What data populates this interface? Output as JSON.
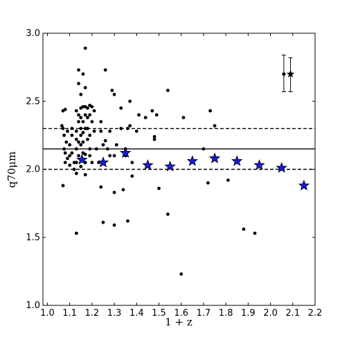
{
  "chart_data": {
    "type": "scatter",
    "xlabel": "1 + z",
    "ylabel": "q70μm",
    "xlim": [
      0.98,
      2.2
    ],
    "ylim": [
      1.0,
      3.0
    ],
    "x_ticks": [
      1.0,
      1.1,
      1.2,
      1.3,
      1.4,
      1.5,
      1.6,
      1.7,
      1.8,
      1.9,
      2.0,
      2.1,
      2.2
    ],
    "x_tick_labels": [
      "1.0",
      "1.1",
      "1.2",
      "1.3",
      "1.4",
      "1.5",
      "1.6",
      "1.7",
      "1.8",
      "1.9",
      "2.0",
      "2.1",
      "2.2"
    ],
    "y_ticks": [
      1.0,
      1.5,
      2.0,
      2.5,
      3.0
    ],
    "y_tick_labels": [
      "1.0",
      "1.5",
      "2.0",
      "2.5",
      "3.0"
    ],
    "grid": false,
    "hlines": [
      {
        "y": 2.15,
        "style": "solid"
      },
      {
        "y": 2.3,
        "style": "dashed"
      },
      {
        "y": 2.0,
        "style": "dashed"
      }
    ],
    "series": [
      {
        "marker": "dot",
        "color": "#000000",
        "points": [
          [
            1.065,
            2.32
          ],
          [
            1.07,
            2.43
          ],
          [
            1.08,
            2.44
          ],
          [
            1.07,
            2.3
          ],
          [
            1.075,
            2.25
          ],
          [
            1.085,
            2.2
          ],
          [
            1.075,
            2.15
          ],
          [
            1.08,
            2.12
          ],
          [
            1.08,
            2.05
          ],
          [
            1.09,
            2.08
          ],
          [
            1.07,
            1.88
          ],
          [
            1.09,
            2.28
          ],
          [
            1.1,
            2.18
          ],
          [
            1.1,
            2.1
          ],
          [
            1.1,
            2.03
          ],
          [
            1.11,
            2.3
          ],
          [
            1.11,
            2.25
          ],
          [
            1.11,
            2.12
          ],
          [
            1.12,
            2.05
          ],
          [
            1.12,
            2.0
          ],
          [
            1.13,
            2.43
          ],
          [
            1.13,
            2.28
          ],
          [
            1.13,
            2.22
          ],
          [
            1.13,
            2.15
          ],
          [
            1.13,
            2.05
          ],
          [
            1.13,
            1.97
          ],
          [
            1.13,
            1.53
          ],
          [
            1.14,
            2.73
          ],
          [
            1.14,
            2.63
          ],
          [
            1.14,
            2.4
          ],
          [
            1.14,
            2.35
          ],
          [
            1.14,
            2.2
          ],
          [
            1.14,
            2.1
          ],
          [
            1.15,
            2.55
          ],
          [
            1.15,
            2.45
          ],
          [
            1.15,
            2.38
          ],
          [
            1.15,
            2.3
          ],
          [
            1.15,
            2.25
          ],
          [
            1.15,
            2.18
          ],
          [
            1.15,
            2.02
          ],
          [
            1.16,
            2.7
          ],
          [
            1.16,
            2.46
          ],
          [
            1.16,
            2.35
          ],
          [
            1.16,
            2.27
          ],
          [
            1.16,
            2.2
          ],
          [
            1.16,
            2.12
          ],
          [
            1.16,
            2.07
          ],
          [
            1.17,
            2.89
          ],
          [
            1.17,
            2.6
          ],
          [
            1.17,
            2.46
          ],
          [
            1.17,
            2.4
          ],
          [
            1.17,
            2.3
          ],
          [
            1.17,
            2.11
          ],
          [
            1.17,
            2.05
          ],
          [
            1.17,
            1.96
          ],
          [
            1.18,
            2.45
          ],
          [
            1.18,
            2.38
          ],
          [
            1.18,
            2.3
          ],
          [
            1.18,
            2.22
          ],
          [
            1.19,
            2.47
          ],
          [
            1.19,
            2.4
          ],
          [
            1.19,
            2.25
          ],
          [
            1.19,
            2.15
          ],
          [
            1.19,
            2.1
          ],
          [
            1.2,
            2.46
          ],
          [
            1.2,
            2.35
          ],
          [
            1.2,
            2.05
          ],
          [
            1.21,
            2.43
          ],
          [
            1.21,
            2.28
          ],
          [
            1.22,
            2.15
          ],
          [
            1.23,
            2.05
          ],
          [
            1.24,
            2.35
          ],
          [
            1.24,
            2.28
          ],
          [
            1.24,
            1.87
          ],
          [
            1.25,
            2.18
          ],
          [
            1.25,
            1.61
          ],
          [
            1.26,
            2.73
          ],
          [
            1.26,
            2.21
          ],
          [
            1.27,
            2.15
          ],
          [
            1.28,
            2.28
          ],
          [
            1.28,
            2.1
          ],
          [
            1.29,
            2.58
          ],
          [
            1.3,
            2.55
          ],
          [
            1.3,
            2.1
          ],
          [
            1.3,
            1.83
          ],
          [
            1.3,
            1.59
          ],
          [
            1.31,
            2.18
          ],
          [
            1.33,
            2.45
          ],
          [
            1.33,
            2.3
          ],
          [
            1.34,
            1.85
          ],
          [
            1.35,
            2.15
          ],
          [
            1.35,
            2.1
          ],
          [
            1.36,
            2.3
          ],
          [
            1.36,
            1.62
          ],
          [
            1.37,
            2.5
          ],
          [
            1.37,
            2.32
          ],
          [
            1.38,
            1.95
          ],
          [
            1.38,
            2.05
          ],
          [
            1.4,
            2.28
          ],
          [
            1.41,
            2.4
          ],
          [
            1.44,
            2.38
          ],
          [
            1.47,
            2.43
          ],
          [
            1.48,
            2.24
          ],
          [
            1.48,
            2.22
          ],
          [
            1.49,
            2.4
          ],
          [
            1.5,
            1.86
          ],
          [
            1.54,
            2.58
          ],
          [
            1.54,
            1.67
          ],
          [
            1.6,
            1.23
          ],
          [
            1.61,
            2.38
          ],
          [
            1.7,
            2.15
          ],
          [
            1.72,
            1.9
          ],
          [
            1.73,
            2.43
          ],
          [
            1.75,
            2.32
          ],
          [
            1.81,
            1.92
          ],
          [
            1.88,
            1.56
          ],
          [
            1.93,
            1.53
          ]
        ]
      },
      {
        "marker": "star",
        "color": "#1a1ad6",
        "points": [
          [
            1.155,
            2.07
          ],
          [
            1.25,
            2.05
          ],
          [
            1.35,
            2.12
          ],
          [
            1.45,
            2.03
          ],
          [
            1.55,
            2.02
          ],
          [
            1.65,
            2.06
          ],
          [
            1.75,
            2.08
          ],
          [
            1.85,
            2.06
          ],
          [
            1.95,
            2.03
          ],
          [
            2.05,
            2.01
          ],
          [
            2.15,
            1.88
          ]
        ]
      }
    ],
    "errorbar_points": [
      {
        "marker": "dot",
        "x": 2.06,
        "y": 2.7,
        "yerr_low": 2.57,
        "yerr_high": 2.84
      },
      {
        "marker": "star",
        "x": 2.09,
        "y": 2.7,
        "yerr_low": 2.57,
        "yerr_high": 2.82
      }
    ]
  }
}
